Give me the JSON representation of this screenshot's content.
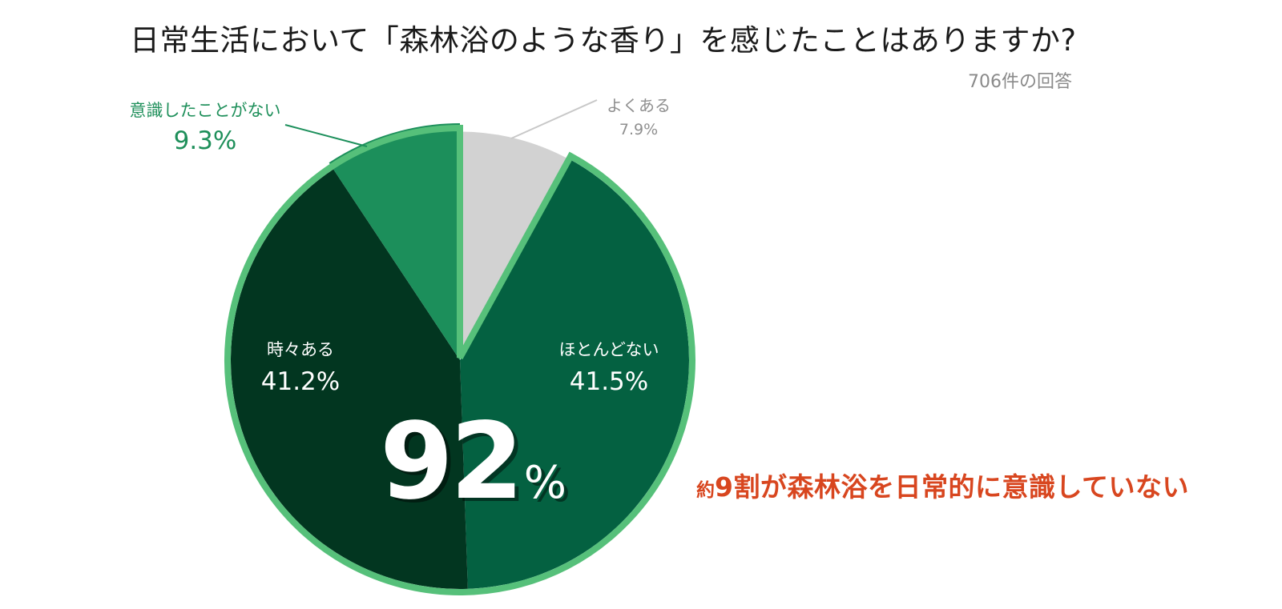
{
  "chart_data": {
    "type": "pie",
    "title": "日常生活において「森林浴のような香り」を感じたことはありますか?",
    "subtitle": "706件の回答",
    "slices": [
      {
        "label": "よくある",
        "value": 7.9,
        "display": "7.9%",
        "color": "#d2d2d2"
      },
      {
        "label": "ほとんどない",
        "value": 41.5,
        "display": "41.5%",
        "color": "#046141"
      },
      {
        "label": "時々ある",
        "value": 41.2,
        "display": "41.2%",
        "color": "#023620"
      },
      {
        "label": "意識したことがない",
        "value": 9.3,
        "display": "9.3%",
        "color": "#1c8f5b"
      }
    ],
    "highlight": {
      "slices": [
        "ほとんどない",
        "時々ある",
        "意識したことがない"
      ],
      "outline_color": "#56c07a",
      "total_number": "92",
      "total_unit": "%"
    },
    "callout": {
      "prefix": "約",
      "text": "9割が森林浴を日常的に意識していない",
      "color": "#d8461f"
    }
  }
}
